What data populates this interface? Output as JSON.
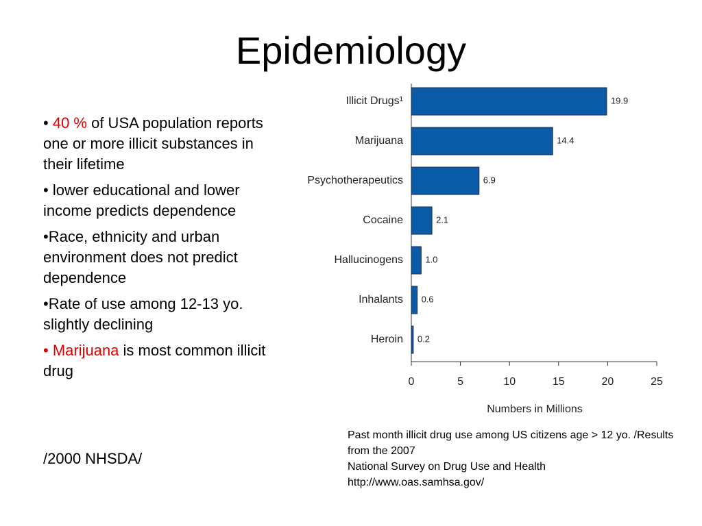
{
  "title": "Epidemiology",
  "bullets": [
    [
      {
        "text": "• "
      },
      {
        "text": "40 %",
        "color": "#e00000"
      },
      {
        "text": " of USA population reports one or more illicit substances in their lifetime"
      }
    ],
    [
      {
        "text": "• lower educational and lower income predicts dependence"
      }
    ],
    [
      {
        "text": "•Race, ethnicity and urban environment does not predict dependence"
      }
    ],
    [
      {
        "text": "•Rate of use among 12-13 yo. slightly declining"
      }
    ],
    [
      {
        "text": "• Marijuana",
        "color": "#e00000"
      },
      {
        "text": " is most common illicit drug"
      }
    ]
  ],
  "source_note": "/2000 NHSDA/",
  "caption": [
    "Past month illicit drug use among US citizens age > 12 yo. /Results from the 2007",
    "National Survey on Drug Use and Health",
    "http://www.oas.samhsa.gov/"
  ],
  "chart_data": {
    "type": "barh",
    "categories": [
      "Illicit Drugs¹",
      "Marijuana",
      "Psychotherapeutics",
      "Cocaine",
      "Hallucinogens",
      "Inhalants",
      "Heroin"
    ],
    "values": [
      19.9,
      14.4,
      6.9,
      2.1,
      1.0,
      0.6,
      0.2
    ],
    "value_labels": [
      "19.9",
      "14.4",
      "6.9",
      "2.1",
      "1.0",
      "0.6",
      "0.2"
    ],
    "color": "#0b5ca8",
    "xlim": [
      0,
      25
    ],
    "xticks": [
      0,
      5,
      10,
      15,
      20,
      25
    ],
    "xlabel": "Numbers in Millions"
  }
}
